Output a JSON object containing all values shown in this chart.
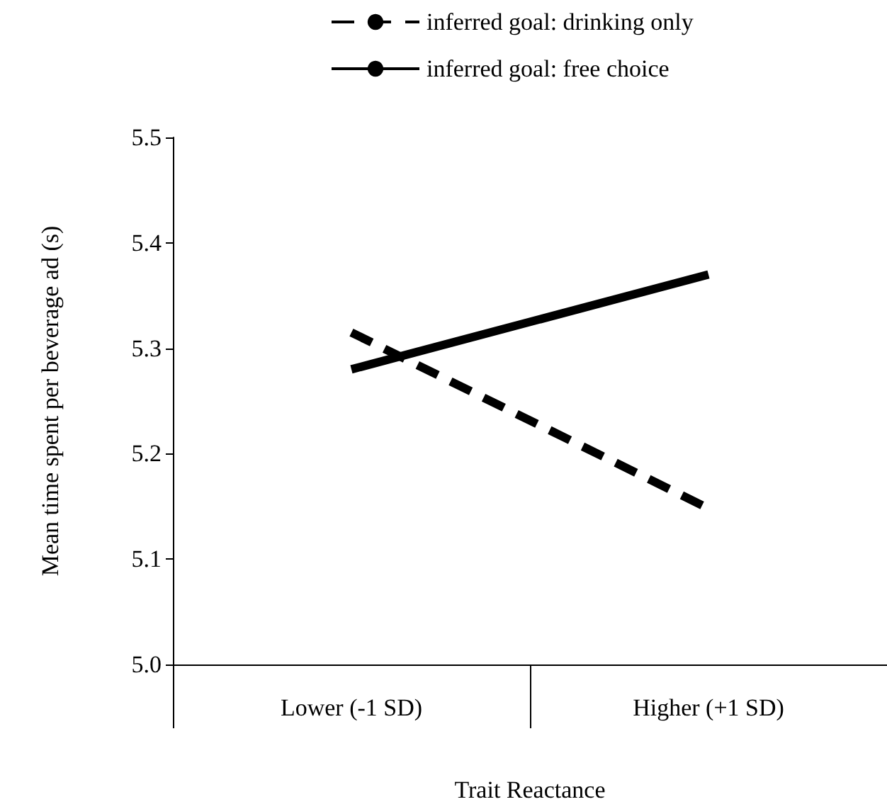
{
  "chart_data": {
    "type": "line",
    "xlabel": "Trait Reactance",
    "ylabel": "Mean time spent per beverage ad (s)",
    "categories": [
      "Lower (-1 SD)",
      "Higher (+1 SD)"
    ],
    "series": [
      {
        "name": "inferred goal: drinking only",
        "color": "#000000",
        "values": [
          5.315,
          5.148
        ],
        "line_style": "dashed"
      },
      {
        "name": "inferred goal: free choice",
        "color": "#000000",
        "values": [
          5.28,
          5.37
        ],
        "line_style": "solid"
      }
    ],
    "ylim": [
      5.0,
      5.5
    ],
    "yticks": [
      {
        "value": 5.0,
        "label": "5.0"
      },
      5.1,
      5.2,
      5.3,
      5.4,
      5.5
    ],
    "grid": false,
    "legend": "top",
    "marker": "none"
  }
}
